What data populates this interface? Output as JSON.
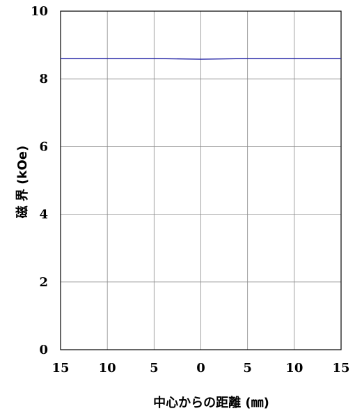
{
  "chart_data": {
    "type": "line",
    "xlabel": "中心からの距離 (㎜)",
    "ylabel": "磁 界 (kOe)",
    "x_tick_labels": [
      "15",
      "10",
      "5",
      "0",
      "5",
      "10",
      "15"
    ],
    "y_tick_labels": [
      "0",
      "2",
      "4",
      "6",
      "8",
      "10"
    ],
    "x_ticks": [
      -15,
      -10,
      -5,
      0,
      5,
      10,
      15
    ],
    "y_ticks": [
      0,
      2,
      4,
      6,
      8,
      10
    ],
    "xlim": [
      -15,
      15
    ],
    "ylim": [
      0,
      10
    ],
    "grid": true,
    "series": [
      {
        "color": "#2a2aa8",
        "x": [
          -15,
          -10,
          -5,
          0,
          5,
          10,
          15
        ],
        "values": [
          8.6,
          8.6,
          8.6,
          8.58,
          8.6,
          8.6,
          8.6
        ]
      }
    ]
  }
}
